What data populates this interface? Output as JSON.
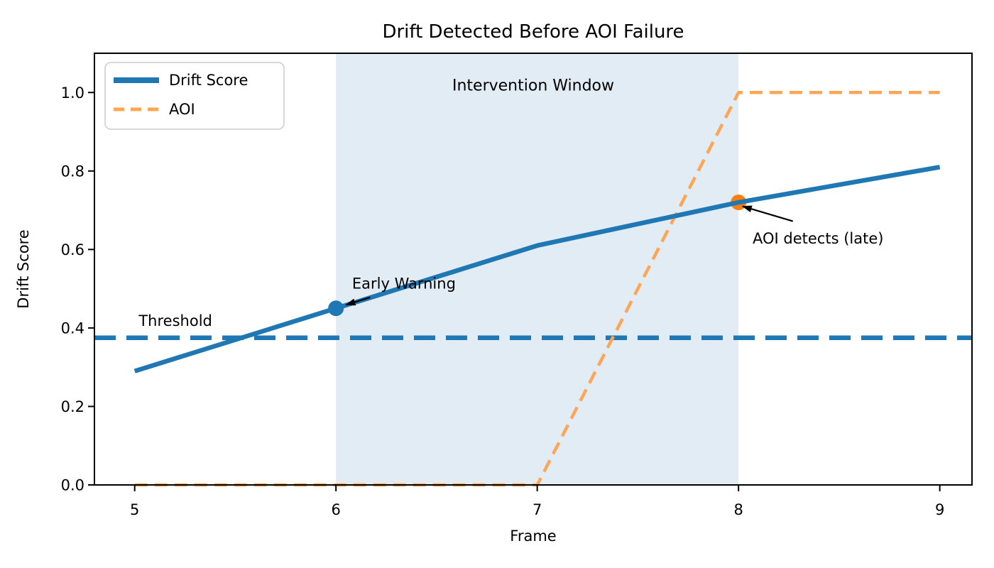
{
  "figure": {
    "background": "#ffffff"
  },
  "chart_data": {
    "type": "line",
    "title": "Drift Detected Before AOI Failure",
    "xlabel": "Frame",
    "ylabel": "Drift Score",
    "xlim": [
      4.8,
      9.16
    ],
    "ylim": [
      0,
      1.1
    ],
    "x_ticks": [
      5,
      6,
      7,
      8,
      9
    ],
    "x_tick_labels": [
      "5",
      "6",
      "7",
      "8",
      "9"
    ],
    "y_ticks": [
      0.0,
      0.2,
      0.4,
      0.6,
      0.8,
      1.0
    ],
    "y_tick_labels": [
      "0.0",
      "0.2",
      "0.4",
      "0.6",
      "0.8",
      "1.0"
    ],
    "grid": false,
    "legend": {
      "position": "upper-left",
      "entries": [
        {
          "label": "Drift Score",
          "style": "solid",
          "color": "#1f77b4"
        },
        {
          "label": "AOI",
          "style": "dashed",
          "color": "#ffa556"
        }
      ]
    },
    "series": [
      {
        "name": "Drift Score",
        "x": [
          5,
          6,
          7,
          8,
          9
        ],
        "values": [
          0.29,
          0.45,
          0.61,
          0.72,
          0.81
        ],
        "color": "#1f77b4",
        "style": "solid",
        "width": 6.5
      },
      {
        "name": "AOI",
        "x": [
          5,
          7,
          8,
          9
        ],
        "values": [
          0,
          0,
          1,
          1
        ],
        "color": "#ffa556",
        "style": "dashed",
        "width": 4.5
      }
    ],
    "threshold_line": {
      "value": 0.375,
      "color": "#1f77b4",
      "style": "dashed",
      "width": 6.5
    },
    "shaded_span": {
      "x_start": 6,
      "x_end": 8,
      "color": "#e1ecf4"
    },
    "markers": [
      {
        "name": "early-warning-point",
        "x": 6,
        "y": 0.45,
        "color": "#1f77b4",
        "radius": 11
      },
      {
        "name": "aoi-detect-point",
        "x": 8,
        "y": 0.72,
        "color": "#ff7f0e",
        "radius": 11
      }
    ],
    "annotations": [
      {
        "id": "intervention-window-label",
        "text": "Intervention Window",
        "x": 6.98,
        "y": 1.005,
        "align": "center",
        "size": 22
      },
      {
        "id": "threshold-label",
        "text": "Threshold",
        "x": 5.02,
        "y": 0.405,
        "align": "left",
        "size": 21
      },
      {
        "id": "early-warning-label",
        "text": "Early Warning",
        "x": 6.08,
        "y": 0.5,
        "align": "left",
        "size": 21,
        "arrow": {
          "x1": 6.17,
          "y1": 0.478,
          "x2": 6.05,
          "y2": 0.459
        }
      },
      {
        "id": "aoi-detects-label",
        "text": "AOI detects (late)",
        "x": 8.07,
        "y": 0.615,
        "align": "left",
        "size": 21,
        "arrow": {
          "x1": 8.27,
          "y1": 0.672,
          "x2": 8.02,
          "y2": 0.71
        }
      }
    ]
  }
}
